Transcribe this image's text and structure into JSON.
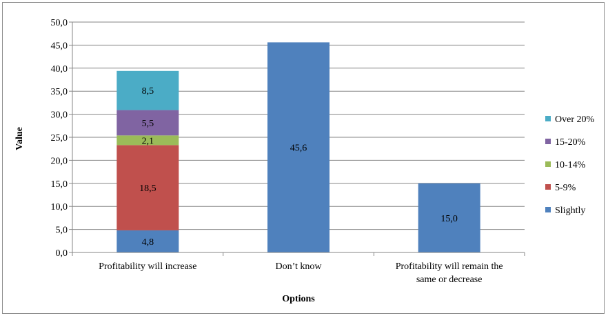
{
  "chart_data": {
    "type": "bar",
    "stacked": true,
    "categories": [
      "Profitability will increase",
      "Don’t know",
      "Profitability will remain the same or decrease"
    ],
    "category_label_lines": [
      [
        "Profitability will increase"
      ],
      [
        "Don’t know"
      ],
      [
        "Profitability will remain the",
        "same or decrease"
      ]
    ],
    "series": [
      {
        "name": "Slightly",
        "color": "#4f81bd",
        "values": [
          4.8,
          45.6,
          15.0
        ],
        "labels": [
          "4,8",
          "45,6",
          "15,0"
        ]
      },
      {
        "name": "5-9%",
        "color": "#c0504d",
        "values": [
          18.5,
          null,
          null
        ],
        "labels": [
          "18,5",
          "",
          ""
        ]
      },
      {
        "name": "10-14%",
        "color": "#9bbb59",
        "values": [
          2.1,
          null,
          null
        ],
        "labels": [
          "2,1",
          "",
          ""
        ]
      },
      {
        "name": " 15-20%",
        "color": "#8064a2",
        "values": [
          5.5,
          null,
          null
        ],
        "labels": [
          "5,5",
          "",
          ""
        ]
      },
      {
        "name": "Over 20%",
        "color": "#4bacc6",
        "values": [
          8.5,
          null,
          null
        ],
        "labels": [
          "8,5",
          "",
          ""
        ]
      }
    ],
    "xlabel": "Options",
    "ylabel": "Value",
    "ylim": [
      0,
      50
    ],
    "yticks": [
      0,
      5,
      10,
      15,
      20,
      25,
      30,
      35,
      40,
      45,
      50
    ],
    "ytick_labels": [
      "0,0",
      "5,0",
      "10,0",
      "15,0",
      "20,0",
      "25,0",
      "30,0",
      "35,0",
      "40,0",
      "45,0",
      "50,0"
    ],
    "grid": true,
    "legend_position": "right",
    "legend_order": [
      "Over 20%",
      " 15-20%",
      "10-14%",
      "5-9%",
      "Slightly"
    ]
  }
}
